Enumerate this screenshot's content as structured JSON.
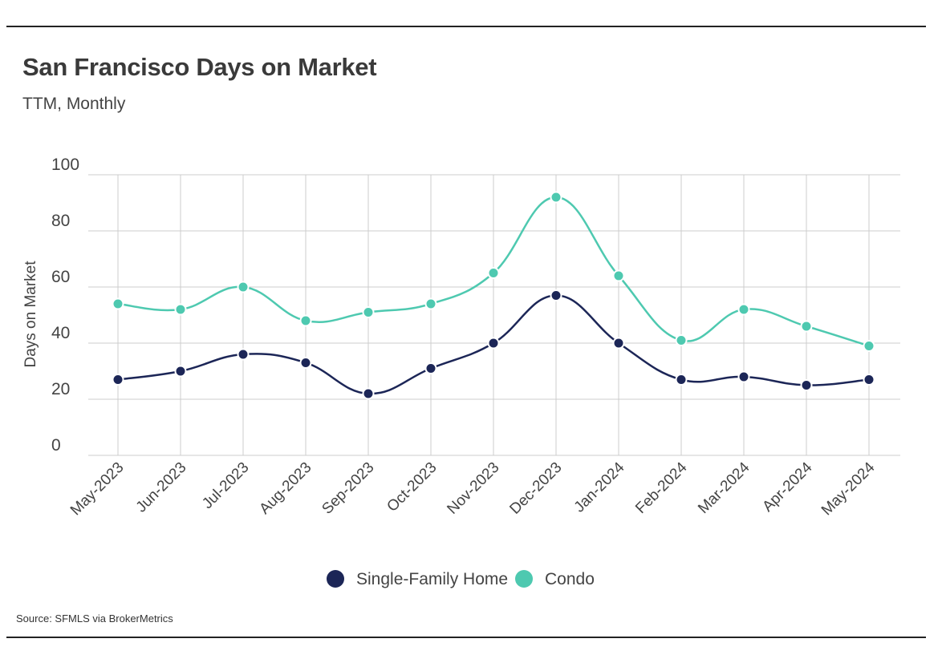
{
  "header": {
    "title": "San Francisco Days on Market",
    "subtitle": "TTM, Monthly"
  },
  "footer": {
    "source": "Source:  SFMLS via BrokerMetrics"
  },
  "colors": {
    "single_family": "#1c2657",
    "condo": "#4ec9b0",
    "grid": "#cccccc",
    "text": "#444444"
  },
  "chart_data": {
    "type": "line",
    "title": "San Francisco Days on Market",
    "subtitle": "TTM, Monthly",
    "xlabel": "",
    "ylabel": "Days on Market",
    "ylim": [
      0,
      100
    ],
    "yticks": [
      0,
      20,
      40,
      60,
      80,
      100
    ],
    "grid": true,
    "legend": "bottom-center",
    "categories": [
      "May-2023",
      "Jun-2023",
      "Jul-2023",
      "Aug-2023",
      "Sep-2023",
      "Oct-2023",
      "Nov-2023",
      "Dec-2023",
      "Jan-2024",
      "Feb-2024",
      "Mar-2024",
      "Apr-2024",
      "May-2024"
    ],
    "series": [
      {
        "name": "Single-Family Home",
        "color": "#1c2657",
        "values": [
          27,
          30,
          36,
          33,
          22,
          31,
          40,
          57,
          40,
          27,
          28,
          25,
          27
        ]
      },
      {
        "name": "Condo",
        "color": "#4ec9b0",
        "values": [
          54,
          52,
          60,
          48,
          51,
          54,
          65,
          92,
          64,
          41,
          52,
          46,
          39
        ]
      }
    ]
  }
}
